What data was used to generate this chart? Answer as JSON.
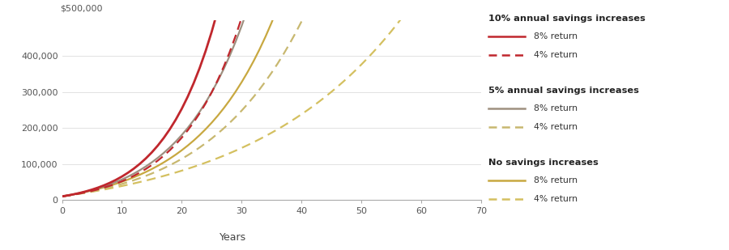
{
  "xlabel": "Years",
  "ylim": [
    0,
    500000
  ],
  "xlim": [
    0,
    70
  ],
  "yticks": [
    0,
    100000,
    200000,
    300000,
    400000
  ],
  "xticks": [
    0,
    10,
    20,
    30,
    40,
    50,
    60,
    70
  ],
  "ytick_labels": [
    "0",
    "100,000",
    "200,000",
    "300,000",
    "400,000"
  ],
  "y_top_label": "$500,000",
  "initial_value": 10000,
  "base_contribution": 2000,
  "background_color": "#ffffff",
  "xlabel_bg_color": "#f0e8d8",
  "axis_color": "#aaaaaa",
  "tick_color": "#555555",
  "grid_color": "#dddddd",
  "colors": {
    "10pct_8ret": "#c0272d",
    "10pct_4ret": "#c0272d",
    "5pct_8ret": "#9e9080",
    "5pct_4ret": "#c8b870",
    "no_8ret": "#c8a840",
    "no_4ret": "#d4c060"
  },
  "legend_groups": [
    {
      "title": "10% annual savings increases",
      "lines": [
        {
          "label": "8% return",
          "color": "#c0272d",
          "linestyle": "solid"
        },
        {
          "label": "4% return",
          "color": "#c0272d",
          "linestyle": "dashed"
        }
      ]
    },
    {
      "title": "5% annual savings increases",
      "lines": [
        {
          "label": "8% return",
          "color": "#9e9080",
          "linestyle": "solid"
        },
        {
          "label": "4% return",
          "color": "#c8b870",
          "linestyle": "dashed"
        }
      ]
    },
    {
      "title": "No savings increases",
      "lines": [
        {
          "label": "8% return",
          "color": "#c8a840",
          "linestyle": "solid"
        },
        {
          "label": "4% return",
          "color": "#d4c060",
          "linestyle": "dashed"
        }
      ]
    }
  ]
}
